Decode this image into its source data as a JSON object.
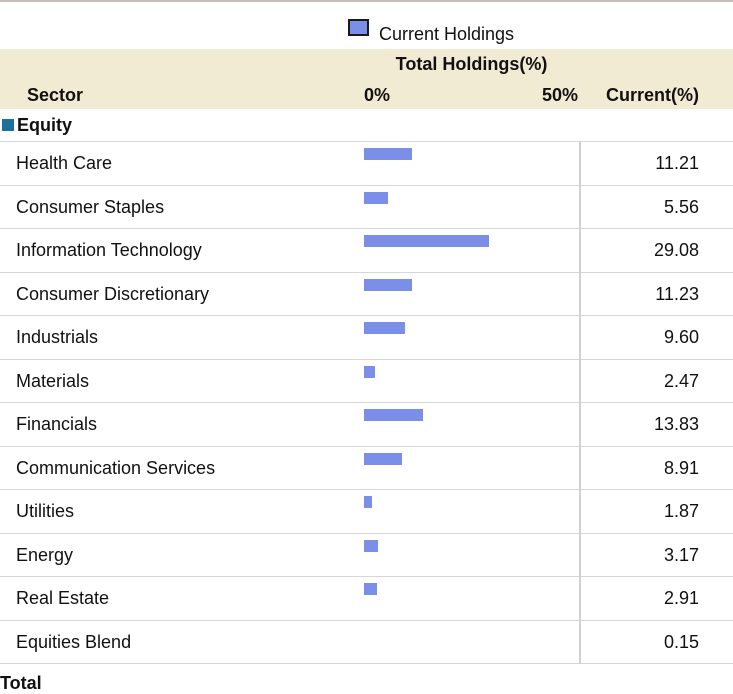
{
  "legend": {
    "label": "Current Holdings"
  },
  "header": {
    "title": "Total Holdings(%)",
    "sector": "Sector",
    "axis_min_label": "0%",
    "axis_max_label": "50%",
    "current": "Current(%)"
  },
  "group": {
    "label": "Equity"
  },
  "footer": {
    "total": "Total"
  },
  "colors": {
    "bar": "#7b8ee8",
    "header_bg": "#f2ebd3",
    "group_swatch": "#1f6f9a"
  },
  "chart_data": {
    "type": "bar",
    "orientation": "horizontal",
    "title": "Total Holdings(%)",
    "xlim": [
      0,
      50
    ],
    "categories": [
      "Health Care",
      "Consumer Staples",
      "Information Technology",
      "Consumer Discretionary",
      "Industrials",
      "Materials",
      "Financials",
      "Communication Services",
      "Utilities",
      "Energy",
      "Real Estate",
      "Equities Blend"
    ],
    "values": [
      11.21,
      5.56,
      29.08,
      11.23,
      9.6,
      2.47,
      13.83,
      8.91,
      1.87,
      3.17,
      2.91,
      0.15
    ],
    "value_labels": [
      "11.21",
      "5.56",
      "29.08",
      "11.23",
      "9.60",
      "2.47",
      "13.83",
      "8.91",
      "1.87",
      "3.17",
      "2.91",
      "0.15"
    ]
  }
}
